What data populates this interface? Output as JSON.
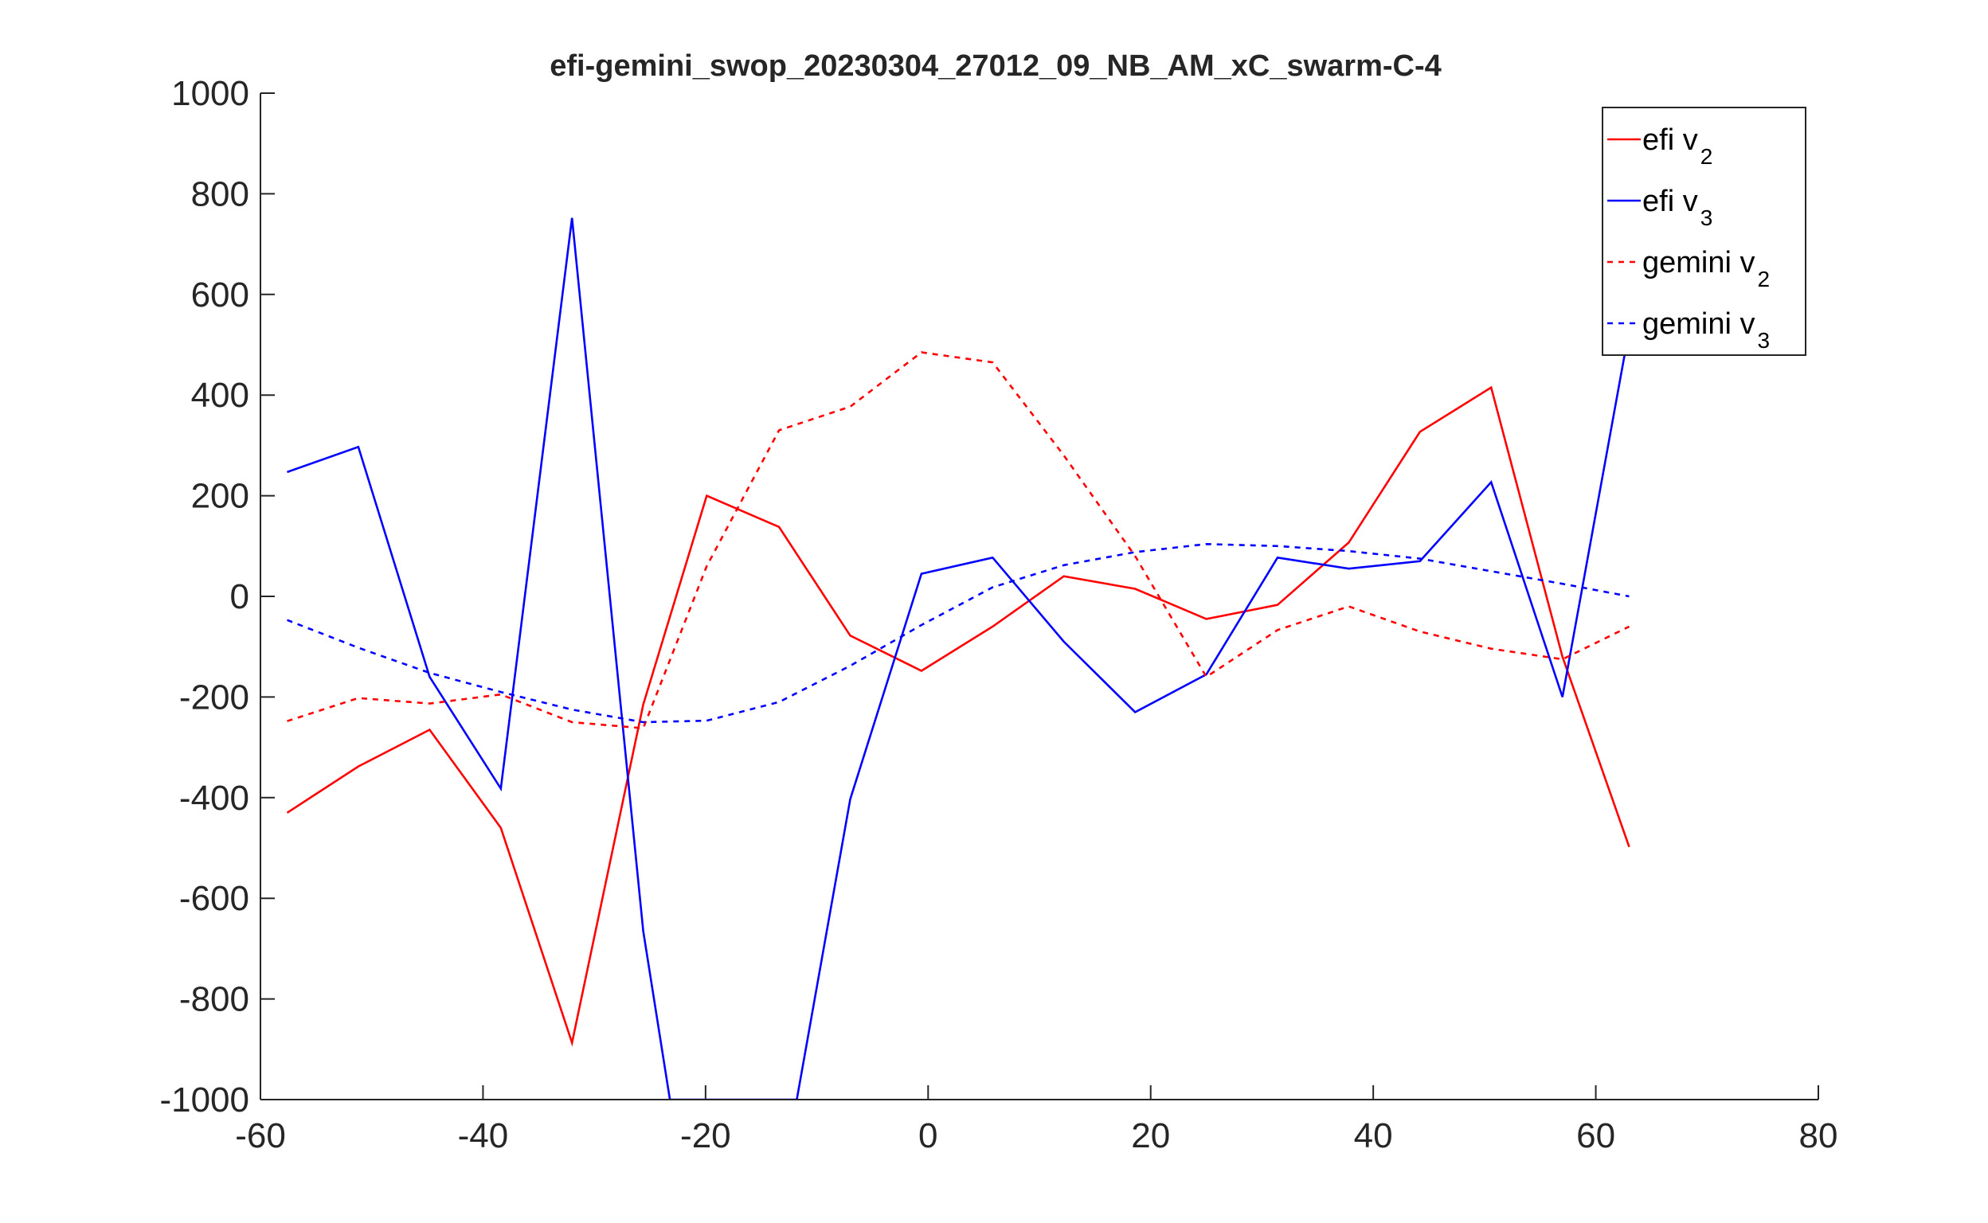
{
  "chart_data": {
    "type": "line",
    "title": "efi-gemini_swop_20230304_27012_09_NB_AM_xC_swarm-C-4",
    "xlabel": "",
    "ylabel": "",
    "xlim": [
      -60,
      80
    ],
    "ylim": [
      -1000,
      1000
    ],
    "xticks": [
      -60,
      -40,
      -20,
      0,
      20,
      40,
      60,
      80
    ],
    "yticks": [
      1000,
      800,
      600,
      400,
      200,
      0,
      -200,
      -400,
      -600,
      -800,
      -1000
    ],
    "xtick_labels": [
      "-60",
      "-40",
      "-20",
      "0",
      "20",
      "40",
      "60",
      "80"
    ],
    "ytick_labels": [
      "1000",
      "800",
      "600",
      "400",
      "200",
      "0",
      "-200",
      "-400",
      "-600",
      "-800",
      "-1000"
    ],
    "grid": false,
    "legend_position": "top-right",
    "series": [
      {
        "name": "efi v",
        "subscript": "2",
        "color": "#ff0000",
        "dash": "solid",
        "x": [
          -57.6,
          -51.2,
          -44.8,
          -38.4,
          -32.0,
          -25.6,
          -19.9,
          -13.4,
          -7.0,
          -0.6,
          5.8,
          12.2,
          18.6,
          25.0,
          31.4,
          37.8,
          44.2,
          50.6,
          57.0,
          63.0
        ],
        "y": [
          -430,
          -338,
          -265,
          -460,
          -887,
          -215,
          200,
          138,
          -78,
          -148,
          -60,
          40,
          15,
          -45,
          -17,
          107,
          327,
          415,
          -120,
          -498
        ]
      },
      {
        "name": "efi v",
        "subscript": "3",
        "color": "#0000ff",
        "dash": "solid",
        "x": [
          -57.6,
          -51.2,
          -44.8,
          -38.4,
          -32.0,
          -25.6,
          -23.2,
          -11.8,
          -7.0,
          -0.6,
          5.8,
          12.2,
          18.6,
          25.0,
          31.4,
          37.8,
          44.2,
          50.6,
          57.0,
          63.0
        ],
        "y": [
          247,
          297,
          -160,
          -382,
          752,
          -665,
          -1000,
          -1000,
          -403,
          45,
          77,
          -90,
          -230,
          -155,
          77,
          55,
          70,
          227,
          -200,
          530
        ]
      },
      {
        "name": "gemini v",
        "subscript": "2",
        "color": "#ff0000",
        "dash": "dashed",
        "x": [
          -57.6,
          -51.2,
          -44.8,
          -38.4,
          -32.0,
          -25.6,
          -19.9,
          -13.4,
          -7.0,
          -0.6,
          5.8,
          12.2,
          18.6,
          25.0,
          31.4,
          37.8,
          44.2,
          50.6,
          57.0,
          63.0
        ],
        "y": [
          -248,
          -202,
          -213,
          -195,
          -250,
          -262,
          60,
          330,
          377,
          485,
          465,
          280,
          80,
          -160,
          -67,
          -20,
          -70,
          -104,
          -125,
          -60
        ]
      },
      {
        "name": "gemini v",
        "subscript": "3",
        "color": "#0000ff",
        "dash": "dashed",
        "x": [
          -57.6,
          -51.2,
          -44.8,
          -38.4,
          -32.0,
          -25.6,
          -19.9,
          -13.4,
          -7.0,
          -0.6,
          5.8,
          12.2,
          18.6,
          25.0,
          31.4,
          37.8,
          44.2,
          50.6,
          57.0,
          63.0
        ],
        "y": [
          -47,
          -102,
          -152,
          -190,
          -225,
          -250,
          -247,
          -210,
          -138,
          -57,
          18,
          62,
          88,
          104,
          100,
          90,
          75,
          50,
          25,
          0
        ]
      }
    ]
  }
}
